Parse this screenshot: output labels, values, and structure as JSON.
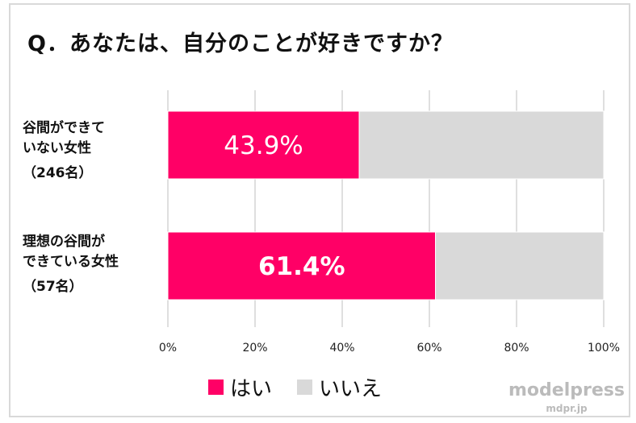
{
  "title": "Q．あなたは、自分のことが好きですか？",
  "chart_data": {
    "type": "bar",
    "stacked": true,
    "orientation": "horizontal",
    "categories": [
      {
        "line1": "谷間ができて",
        "line2": "いない女性",
        "count": "（246名）"
      },
      {
        "line1": "理想の谷間が",
        "line2": "できている女性",
        "count": "（57名）"
      }
    ],
    "series": [
      {
        "name": "はい",
        "color": "#ff0066",
        "values": [
          43.9,
          61.4
        ],
        "labels": [
          "43.9%",
          "61.4%"
        ]
      },
      {
        "name": "いいえ",
        "color": "#d9d9d9",
        "values": [
          56.1,
          38.6
        ]
      }
    ],
    "xlim": [
      0,
      100
    ],
    "xticks": [
      "0%",
      "20%",
      "40%",
      "60%",
      "80%",
      "100%"
    ],
    "grid": true,
    "legend": "bottom"
  },
  "watermark": {
    "brand": "modelpress",
    "site": "mdpr.jp"
  }
}
